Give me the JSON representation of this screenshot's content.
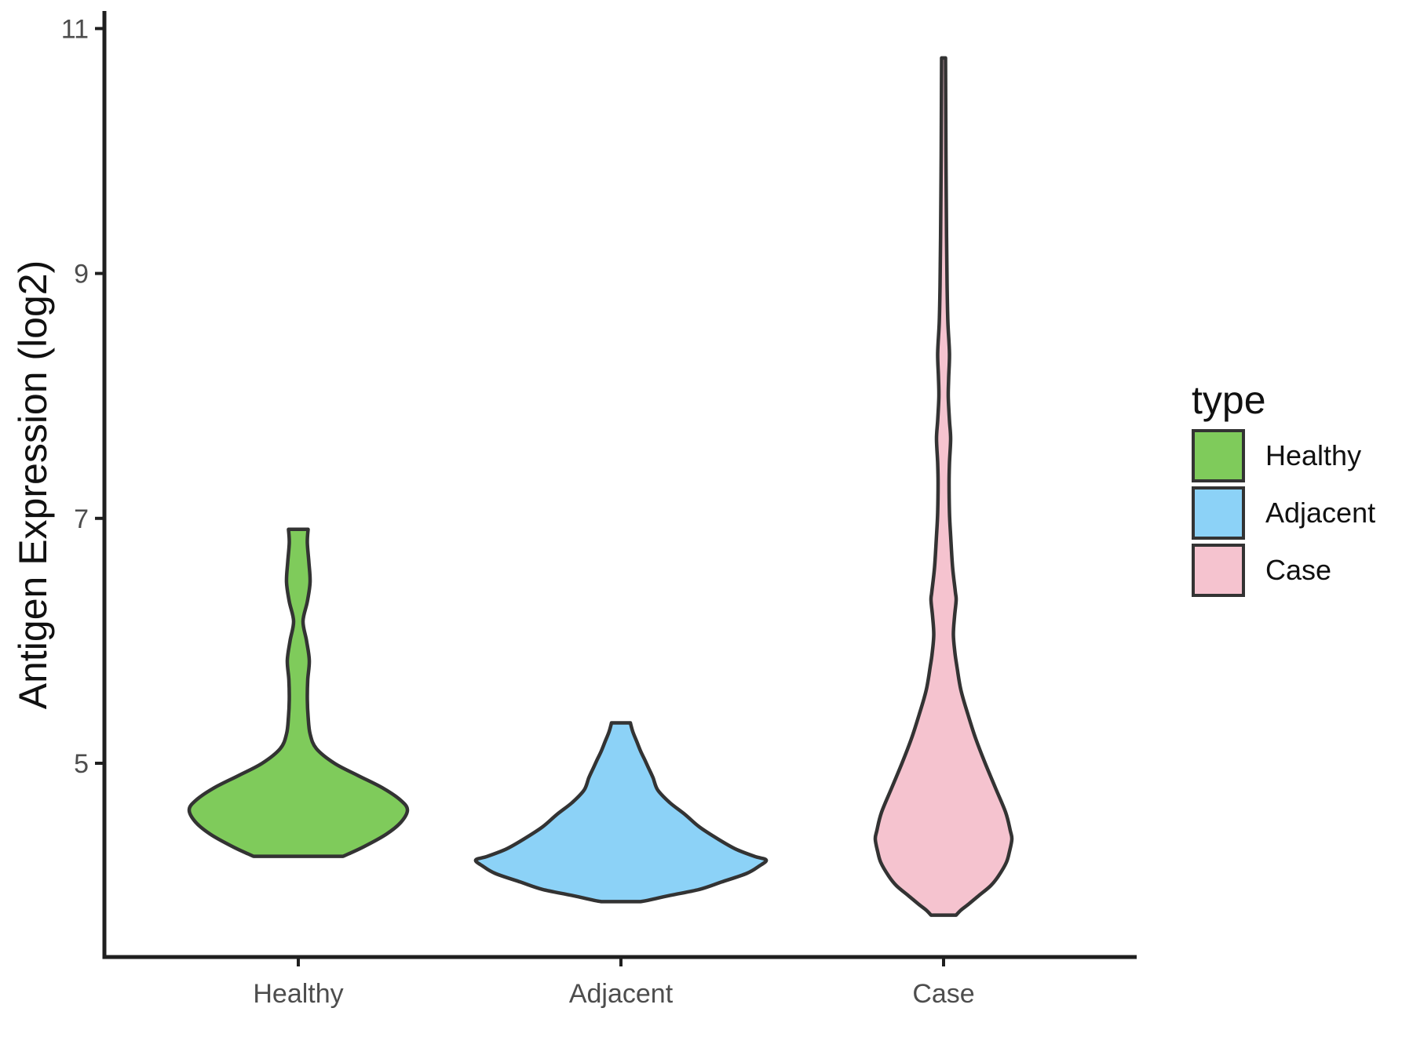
{
  "chart_data": {
    "type": "violin",
    "title": "",
    "xlabel": "",
    "ylabel": "Antigen Expression (log2)",
    "categories": [
      "Healthy",
      "Adjacent",
      "Case"
    ],
    "y_ticks": [
      5,
      7,
      9,
      11
    ],
    "ylim": [
      3.5,
      11.2
    ],
    "grid": false,
    "outline_color": "#333333",
    "axis_color": "#1f1f1f",
    "tick_text_color": "#4d4d4d",
    "legend": {
      "title": "type",
      "position": "right",
      "entries": [
        {
          "label": "Healthy",
          "color": "#7fcb5b"
        },
        {
          "label": "Adjacent",
          "color": "#8cd2f7"
        },
        {
          "label": "Case",
          "color": "#f5c3cf"
        }
      ]
    },
    "profile_note": "profile points are [expression_log2_value, silhouette_half_width_px]; violins are truncated flat at their min/max",
    "series": [
      {
        "name": "Healthy",
        "color": "#7fcb5b",
        "summary": {
          "min": 4.24,
          "max": 6.91,
          "widest_at": 4.62
        },
        "profile": [
          [
            6.91,
            12.5
          ],
          [
            6.8,
            11.5
          ],
          [
            6.64,
            13.5
          ],
          [
            6.48,
            15
          ],
          [
            6.32,
            11.5
          ],
          [
            6.16,
            6
          ],
          [
            6.0,
            10.5
          ],
          [
            5.84,
            14
          ],
          [
            5.68,
            12
          ],
          [
            5.52,
            11.5
          ],
          [
            5.38,
            12.5
          ],
          [
            5.24,
            15
          ],
          [
            5.12,
            23
          ],
          [
            5.0,
            46
          ],
          [
            4.9,
            76
          ],
          [
            4.8,
            107
          ],
          [
            4.7,
            130
          ],
          [
            4.62,
            139
          ],
          [
            4.52,
            131
          ],
          [
            4.42,
            112
          ],
          [
            4.32,
            84
          ],
          [
            4.26,
            64
          ],
          [
            4.24,
            57
          ]
        ]
      },
      {
        "name": "Adjacent",
        "color": "#8cd2f7",
        "summary": {
          "min": 3.87,
          "max": 5.33,
          "widest_at": 4.21
        },
        "profile": [
          [
            5.33,
            12
          ],
          [
            5.26,
            15
          ],
          [
            5.18,
            20
          ],
          [
            5.1,
            25
          ],
          [
            5.02,
            31
          ],
          [
            4.95,
            36
          ],
          [
            4.88,
            41
          ],
          [
            4.78,
            47
          ],
          [
            4.68,
            62
          ],
          [
            4.58,
            82
          ],
          [
            4.48,
            100
          ],
          [
            4.38,
            124
          ],
          [
            4.3,
            146
          ],
          [
            4.24,
            170
          ],
          [
            4.21,
            185
          ],
          [
            4.16,
            176
          ],
          [
            4.1,
            160
          ],
          [
            4.03,
            128
          ],
          [
            3.97,
            100
          ],
          [
            3.92,
            62
          ],
          [
            3.88,
            34
          ],
          [
            3.87,
            25
          ]
        ]
      },
      {
        "name": "Case",
        "color": "#f5c3cf",
        "summary": {
          "min": 3.76,
          "max": 10.76,
          "widest_at": 4.38
        },
        "profile": [
          [
            10.76,
            2.5
          ],
          [
            10.3,
            2.8
          ],
          [
            9.8,
            3.2
          ],
          [
            9.3,
            3.8
          ],
          [
            8.9,
            4.5
          ],
          [
            8.6,
            5.5
          ],
          [
            8.35,
            7.5
          ],
          [
            8.15,
            6.5
          ],
          [
            7.99,
            6
          ],
          [
            7.8,
            7.5
          ],
          [
            7.65,
            9
          ],
          [
            7.45,
            7.5
          ],
          [
            7.29,
            7
          ],
          [
            7.05,
            7.5
          ],
          [
            6.86,
            9
          ],
          [
            6.6,
            11.5
          ],
          [
            6.4,
            15
          ],
          [
            6.33,
            16
          ],
          [
            6.2,
            14
          ],
          [
            6.05,
            12.5
          ],
          [
            5.9,
            14.5
          ],
          [
            5.79,
            17
          ],
          [
            5.6,
            22
          ],
          [
            5.4,
            31
          ],
          [
            5.2,
            41
          ],
          [
            5.0,
            53
          ],
          [
            4.8,
            66
          ],
          [
            4.6,
            79
          ],
          [
            4.45,
            85
          ],
          [
            4.38,
            87
          ],
          [
            4.28,
            84
          ],
          [
            4.19,
            80
          ],
          [
            4.08,
            70
          ],
          [
            4.0,
            60
          ],
          [
            3.92,
            45
          ],
          [
            3.85,
            32
          ],
          [
            3.8,
            22
          ],
          [
            3.76,
            16
          ]
        ]
      }
    ]
  }
}
